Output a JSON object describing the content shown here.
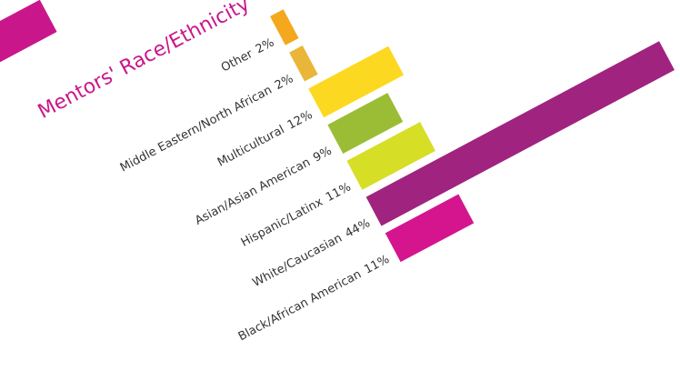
{
  "chart_data": {
    "type": "bar",
    "title": "Mentors' Race/Ethnicity",
    "categories": [
      "Other",
      "Middle Eastern/North African",
      "Multicultural",
      "Asian/Asian American",
      "Hispanic/Latinx",
      "White/Caucasian",
      "Black/African American"
    ],
    "values": [
      2,
      2,
      12,
      9,
      11,
      44,
      11
    ],
    "value_labels": [
      "2%",
      "2%",
      "12%",
      "9%",
      "11%",
      "44%",
      "11%"
    ],
    "colors": [
      "#f3a81e",
      "#e9b63a",
      "#fcd920",
      "#9bbd35",
      "#d6de26",
      "#a0237f",
      "#d4158e"
    ]
  }
}
